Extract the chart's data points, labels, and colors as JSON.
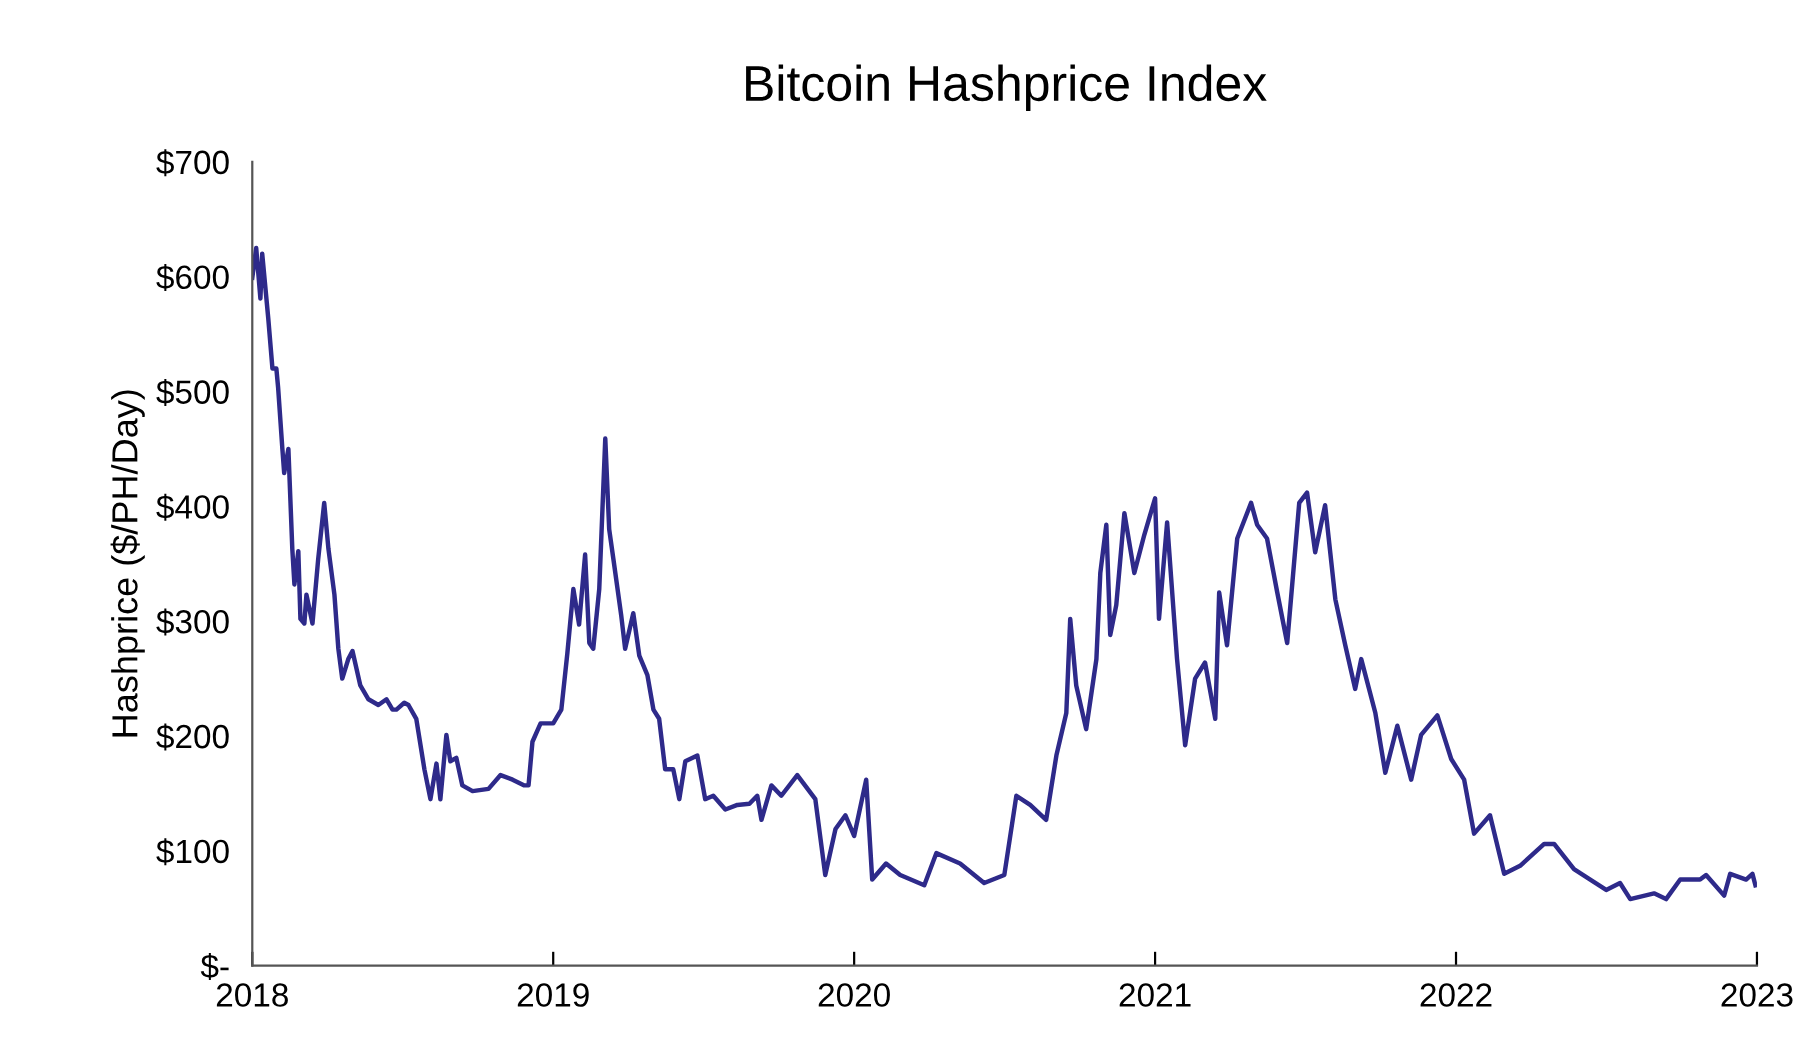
{
  "chart_data": {
    "type": "line",
    "title": "Bitcoin Hashprice Index",
    "ylabel": "Hashprice ($/PH/Day)",
    "xlim": [
      2018,
      2023
    ],
    "xticks": [
      2018,
      2019,
      2020,
      2021,
      2022,
      2023
    ],
    "ylim": [
      0,
      700
    ],
    "yticks": [
      {
        "value": 0,
        "label": "$-"
      },
      {
        "value": 100,
        "label": "$100"
      },
      {
        "value": 200,
        "label": "$200"
      },
      {
        "value": 300,
        "label": "$300"
      },
      {
        "value": 400,
        "label": "$400"
      },
      {
        "value": 500,
        "label": "$500"
      },
      {
        "value": 600,
        "label": "$600"
      },
      {
        "value": 700,
        "label": "$700"
      }
    ],
    "grid": false,
    "legend": false,
    "marker": "none",
    "line_style": "solid",
    "series": [
      {
        "color": "#2e2a8a",
        "x": [
          2018.0,
          2018.013,
          2018.027,
          2018.033,
          2018.053,
          2018.067,
          2018.08,
          2018.086,
          2018.1,
          2018.106,
          2018.12,
          2018.133,
          2018.14,
          2018.153,
          2018.16,
          2018.173,
          2018.18,
          2018.2,
          2018.219,
          2018.239,
          2018.253,
          2018.273,
          2018.286,
          2018.299,
          2018.319,
          2018.333,
          2018.359,
          2018.386,
          2018.419,
          2018.446,
          2018.466,
          2018.479,
          2018.505,
          2018.519,
          2018.545,
          2018.572,
          2018.592,
          2018.612,
          2018.625,
          2018.645,
          2018.658,
          2018.678,
          2018.698,
          2018.732,
          2018.785,
          2018.825,
          2018.865,
          2018.904,
          2018.918,
          2018.931,
          2018.958,
          2019.0,
          2019.027,
          2019.047,
          2019.067,
          2019.086,
          2019.106,
          2019.12,
          2019.133,
          2019.153,
          2019.173,
          2019.186,
          2019.2,
          2019.226,
          2019.239,
          2019.266,
          2019.286,
          2019.313,
          2019.333,
          2019.352,
          2019.372,
          2019.399,
          2019.419,
          2019.439,
          2019.479,
          2019.505,
          2019.532,
          2019.572,
          2019.612,
          2019.652,
          2019.678,
          2019.692,
          2019.725,
          2019.758,
          2019.811,
          2019.871,
          2019.904,
          2019.938,
          2019.971,
          2020.0,
          2020.04,
          2020.06,
          2020.106,
          2020.153,
          2020.233,
          2020.273,
          2020.352,
          2020.432,
          2020.499,
          2020.539,
          2020.585,
          2020.638,
          2020.672,
          2020.705,
          2020.718,
          2020.738,
          2020.771,
          2020.805,
          2020.818,
          2020.838,
          2020.851,
          2020.871,
          2020.898,
          2020.931,
          2020.964,
          2021.0,
          2021.013,
          2021.04,
          2021.073,
          2021.1,
          2021.133,
          2021.166,
          2021.2,
          2021.213,
          2021.239,
          2021.273,
          2021.319,
          2021.339,
          2021.372,
          2021.406,
          2021.439,
          2021.479,
          2021.505,
          2021.532,
          2021.565,
          2021.599,
          2021.632,
          2021.665,
          2021.685,
          2021.732,
          2021.765,
          2021.805,
          2021.851,
          2021.884,
          2021.938,
          2021.984,
          2022.027,
          2022.06,
          2022.113,
          2022.16,
          2022.213,
          2022.293,
          2022.326,
          2022.392,
          2022.446,
          2022.499,
          2022.545,
          2022.579,
          2022.658,
          2022.698,
          2022.745,
          2022.811,
          2022.831,
          2022.891,
          2022.911,
          2022.964,
          2022.985,
          2022.995
        ],
        "values": [
          599,
          625,
          581,
          620,
          564,
          520,
          520,
          503,
          450,
          429,
          450,
          363,
          332,
          361,
          302,
          298,
          323,
          298,
          354,
          403,
          363,
          323,
          276,
          250,
          267,
          274,
          244,
          232,
          227,
          232,
          223,
          223,
          229,
          227,
          215,
          171,
          145,
          176,
          145,
          201,
          178,
          181,
          157,
          152,
          154,
          166,
          162,
          157,
          157,
          195,
          211,
          211,
          223,
          272,
          328,
          297,
          358,
          281,
          276,
          328,
          459,
          380,
          354,
          305,
          276,
          307,
          270,
          253,
          223,
          215,
          171,
          171,
          145,
          178,
          183,
          145,
          148,
          136,
          140,
          141,
          148,
          127,
          157,
          148,
          166,
          145,
          79,
          119,
          131,
          113,
          162,
          75,
          89,
          79,
          70,
          98,
          89,
          72,
          79,
          148,
          140,
          127,
          183,
          220,
          302,
          244,
          206,
          267,
          342,
          384,
          288,
          314,
          394,
          342,
          375,
          407,
          302,
          386,
          267,
          192,
          250,
          264,
          215,
          325,
          279,
          372,
          403,
          384,
          372,
          325,
          281,
          403,
          412,
          360,
          401,
          319,
          279,
          241,
          267,
          220,
          168,
          209,
          162,
          201,
          218,
          180,
          162,
          115,
          131,
          80,
          87,
          106,
          106,
          84,
          75,
          66,
          72,
          58,
          63,
          58,
          75,
          75,
          79,
          61,
          80,
          75,
          80,
          70
        ]
      }
    ]
  }
}
